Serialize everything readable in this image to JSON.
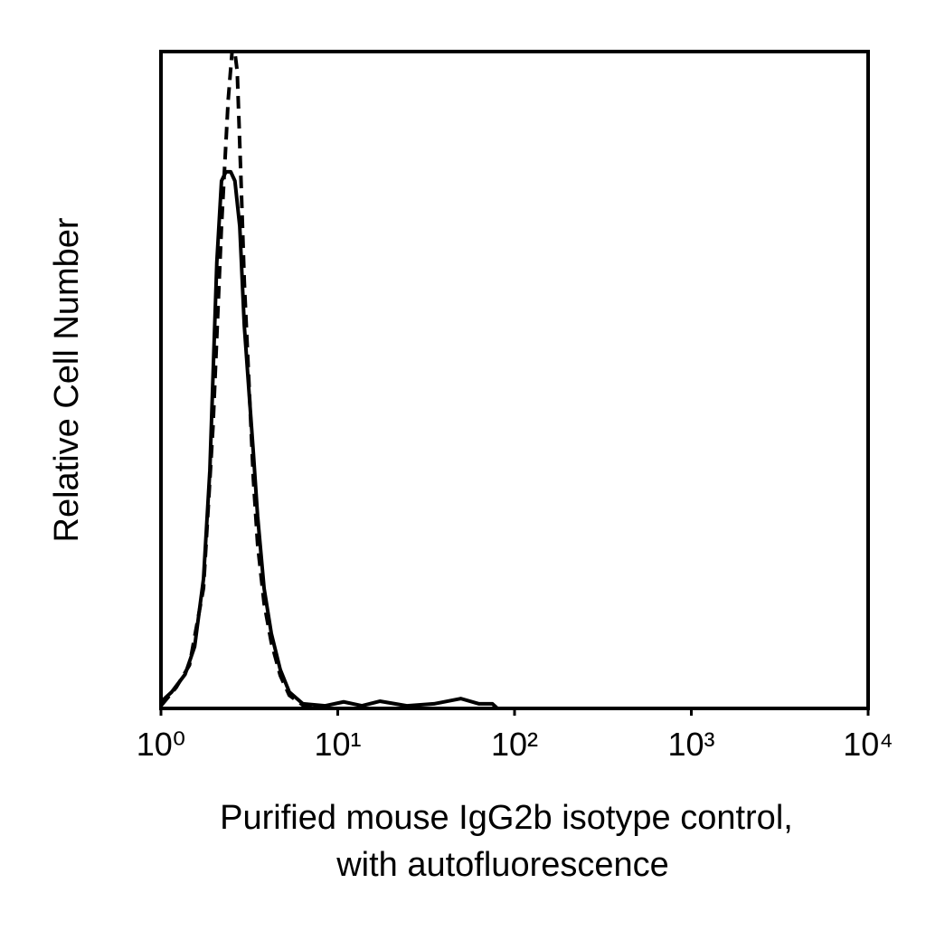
{
  "chart_data": {
    "type": "line",
    "ylabel": "Relative Cell Number",
    "xlabel": [
      "Purified mouse IgG2b isotype control,",
      "with autofluorescence"
    ],
    "xscale": "log",
    "xlim": [
      1,
      10000
    ],
    "xticks": [
      {
        "value": 1,
        "label": "10⁰"
      },
      {
        "value": 10,
        "label": "10¹"
      },
      {
        "value": 100,
        "label": "10²"
      },
      {
        "value": 1000,
        "label": "10³"
      },
      {
        "value": 10000,
        "label": "10⁴"
      }
    ],
    "ylim": [
      0,
      100
    ],
    "grid": false,
    "series": [
      {
        "name": "Purified mouse IgG2b isotype control",
        "color": "#000000",
        "line_style": "solid",
        "x": [
          1,
          1.15,
          1.37,
          1.55,
          1.74,
          1.89,
          2.07,
          2.2,
          2.33,
          2.48,
          2.62,
          2.79,
          2.96,
          3.14,
          3.33,
          3.52,
          3.83,
          4.21,
          4.73,
          5.32,
          6.35,
          8.5,
          10.8,
          13.7,
          17.3,
          24.6,
          35,
          49.7,
          63,
          75,
          80
        ],
        "values": [
          1,
          2.5,
          5.2,
          9.4,
          19.7,
          36.2,
          67.9,
          80.3,
          81.7,
          81.7,
          80.3,
          73.4,
          58.3,
          48.6,
          39,
          29.3,
          18.3,
          11.4,
          5.9,
          2.5,
          0.7,
          0.4,
          1,
          0.4,
          1.1,
          0.4,
          0.7,
          1.5,
          0.7,
          0.7,
          0
        ]
      },
      {
        "name": "Autofluorescence",
        "color": "#000000",
        "line_style": "dashed",
        "x": [
          1,
          1.22,
          1.45,
          1.74,
          1.97,
          2.2,
          2.4,
          2.56,
          2.7,
          2.84,
          2.96,
          3.14,
          3.33,
          3.52,
          3.83,
          4.21,
          4.73,
          5.32,
          6.35,
          8
        ],
        "values": [
          0.4,
          3.2,
          6.6,
          18.3,
          43,
          73.4,
          92.6,
          102,
          97,
          80,
          65,
          50,
          35,
          25,
          16,
          10,
          5,
          2,
          0.5,
          0
        ]
      }
    ]
  }
}
